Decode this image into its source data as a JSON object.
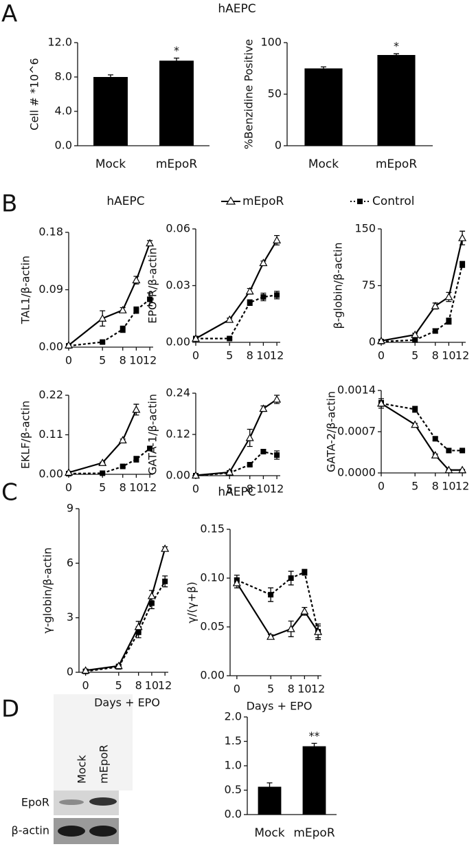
{
  "panels": [
    {
      "label": "A",
      "title": "hAEPC"
    },
    {
      "label": "B",
      "title": "hAEPC"
    },
    {
      "label": "C",
      "title": "hAEPC"
    },
    {
      "label": "D"
    }
  ],
  "blot": {
    "lanes": [
      "Mock",
      "mEpoR"
    ],
    "rows": [
      "EpoR",
      "β-actin"
    ]
  },
  "chart_data": [
    {
      "type": "bar",
      "y_label": "Cell # *10^6",
      "categories": [
        "Mock",
        "mEpoR"
      ],
      "values": [
        8.0,
        9.9
      ],
      "errors": [
        0.25,
        0.3
      ],
      "color": "#000000",
      "annotation": "*",
      "ylim": [
        0,
        12
      ],
      "yticks": [
        {
          "value": 0,
          "label": "0.0"
        },
        {
          "value": 4,
          "label": "4.0"
        },
        {
          "value": 8,
          "label": "8.0"
        },
        {
          "value": 12,
          "label": "12.0"
        }
      ]
    },
    {
      "type": "bar",
      "y_label": "%Benzidine Positive",
      "categories": [
        "Mock",
        "mEpoR"
      ],
      "values": [
        75,
        88
      ],
      "errors": [
        1.5,
        1.2
      ],
      "color": "#000000",
      "annotation": "*",
      "ylim": [
        0,
        100
      ],
      "yticks": [
        0,
        50,
        100
      ]
    },
    {
      "type": "line",
      "y_label": "TAL1/β-actin",
      "x": [
        0,
        5,
        8,
        10,
        12
      ],
      "xlim": [
        0,
        12.5
      ],
      "xticks": [
        0,
        5,
        8,
        10,
        12
      ],
      "ylim": [
        0,
        0.18
      ],
      "yticks": [
        {
          "value": 0,
          "label": "0.00"
        },
        0.09,
        0.18
      ],
      "series": [
        {
          "name": "mEpoR",
          "color": "#000000",
          "marker": "triangle",
          "line_style": "solid",
          "values": [
            0.003,
            0.045,
            0.058,
            0.105,
            0.163
          ],
          "errors": [
            0.002,
            0.012,
            0.004,
            0.006,
            0.004
          ]
        },
        {
          "name": "Control",
          "color": "#000000",
          "marker": "square",
          "line_style": "dashed",
          "values": [
            0.002,
            0.008,
            0.028,
            0.058,
            0.075
          ],
          "errors": [
            0.002,
            0.002,
            0.005,
            0.005,
            0.01
          ]
        }
      ]
    },
    {
      "type": "line",
      "y_label": "EPO-R/β-actin",
      "x": [
        0,
        5,
        8,
        10,
        12
      ],
      "xlim": [
        0,
        12.5
      ],
      "xticks": [
        0,
        5,
        8,
        10,
        12
      ],
      "ylim": [
        0,
        0.06
      ],
      "yticks": [
        {
          "value": 0,
          "label": "0.00"
        },
        0.03,
        0.06
      ],
      "series": [
        {
          "name": "mEpoR",
          "color": "#000000",
          "marker": "triangle",
          "line_style": "solid",
          "values": [
            0.002,
            0.012,
            0.027,
            0.042,
            0.054
          ],
          "errors": [
            0.0005,
            0.0008,
            0.0015,
            0.001,
            0.0025
          ]
        },
        {
          "name": "Control",
          "color": "#000000",
          "marker": "square",
          "line_style": "dashed",
          "values": [
            0.002,
            0.002,
            0.021,
            0.024,
            0.025
          ],
          "errors": [
            0.0005,
            0.0005,
            0.0015,
            0.002,
            0.002
          ]
        }
      ]
    },
    {
      "type": "line",
      "y_label": "β-globin/β-actin",
      "x": [
        0,
        5,
        8,
        10,
        12
      ],
      "xlim": [
        0,
        12.5
      ],
      "xticks": [
        0,
        5,
        8,
        10,
        12
      ],
      "ylim": [
        0,
        150
      ],
      "yticks": [
        0,
        75,
        150
      ],
      "series": [
        {
          "name": "mEpoR",
          "color": "#000000",
          "marker": "triangle",
          "line_style": "solid",
          "values": [
            2,
            10,
            48,
            60,
            138
          ],
          "errors": [
            1,
            2,
            4,
            6,
            9
          ]
        },
        {
          "name": "Control",
          "color": "#000000",
          "marker": "square",
          "line_style": "dashed",
          "values": [
            1,
            3,
            15,
            28,
            103
          ],
          "errors": [
            1,
            1,
            3,
            4,
            4
          ]
        }
      ]
    },
    {
      "type": "line",
      "y_label": "EKLF/β-actin",
      "x": [
        0,
        5,
        8,
        10,
        12
      ],
      "xlim": [
        0,
        12.5
      ],
      "xticks": [
        0,
        5,
        8,
        10,
        12
      ],
      "ylim": [
        0,
        0.22
      ],
      "yticks": [
        {
          "value": 0,
          "label": "0.00"
        },
        0.11,
        0.22
      ],
      "series": [
        {
          "name": "mEpoR",
          "color": "#000000",
          "marker": "triangle",
          "line_style": "solid",
          "values": [
            0.005,
            0.032,
            0.095,
            0.18,
            null
          ],
          "errors": [
            0.002,
            0.002,
            0.003,
            0.015,
            null
          ]
        },
        {
          "name": "Control",
          "color": "#000000",
          "marker": "square",
          "line_style": "dashed",
          "values": [
            0.002,
            0.003,
            0.022,
            0.042,
            0.072
          ],
          "errors": [
            0.001,
            0.001,
            0.003,
            0.008,
            0.005
          ]
        }
      ]
    },
    {
      "type": "line",
      "y_label": "GATA-1/β-actin",
      "x": [
        0,
        5,
        8,
        10,
        12
      ],
      "xlim": [
        0,
        12.5
      ],
      "xticks": [
        0,
        5,
        8,
        10,
        12
      ],
      "ylim": [
        0,
        0.24
      ],
      "yticks": [
        {
          "value": 0,
          "label": "0.00"
        },
        0.12,
        0.24
      ],
      "series": [
        {
          "name": "mEpoR",
          "color": "#000000",
          "marker": "triangle",
          "line_style": "solid",
          "values": [
            0.001,
            0.01,
            0.11,
            0.195,
            0.222
          ],
          "errors": [
            0.001,
            0.005,
            0.025,
            0.008,
            0.012
          ]
        },
        {
          "name": "Control",
          "color": "#000000",
          "marker": "square",
          "line_style": "dashed",
          "values": [
            0.0,
            0.008,
            0.032,
            0.07,
            0.06
          ],
          "errors": [
            0.001,
            0.003,
            0.004,
            0.006,
            0.012
          ]
        }
      ]
    },
    {
      "type": "line",
      "y_label": "GATA-2/β-actin",
      "x": [
        0,
        5,
        8,
        10,
        12
      ],
      "xlim": [
        0,
        12.5
      ],
      "xticks": [
        0,
        5,
        8,
        10,
        12
      ],
      "ylim": [
        0,
        0.0014
      ],
      "yticks": [
        {
          "value": 0,
          "label": "0.0000"
        },
        0.0007,
        0.0014
      ],
      "series": [
        {
          "name": "mEpoR",
          "color": "#000000",
          "marker": "triangle",
          "line_style": "solid",
          "values": [
            0.00118,
            0.00082,
            0.0003,
            5e-05,
            5e-05
          ],
          "errors": [
            5e-05,
            2e-05,
            2e-05,
            1e-05,
            1e-05
          ]
        },
        {
          "name": "Control",
          "color": "#000000",
          "marker": "square",
          "line_style": "dashed",
          "values": [
            0.00118,
            0.00108,
            0.00058,
            0.00038,
            0.00038
          ],
          "errors": [
            8e-05,
            5e-05,
            3e-05,
            2e-05,
            1e-05
          ]
        }
      ]
    },
    {
      "type": "line",
      "y_label": "γ-globin/β-actin",
      "x_label": "Days + EPO",
      "x": [
        0,
        5,
        8,
        10,
        12
      ],
      "xlim": [
        -1,
        12.5
      ],
      "xticks": [
        0,
        5,
        8,
        10,
        12
      ],
      "ylim": [
        0,
        9
      ],
      "yticks": [
        0,
        3,
        6,
        9
      ],
      "series": [
        {
          "name": "mEpoR",
          "color": "#000000",
          "marker": "triangle",
          "line_style": "solid",
          "values": [
            0.1,
            0.35,
            2.5,
            4.2,
            6.8
          ],
          "errors": [
            0.05,
            0.1,
            0.3,
            0.3,
            0.1
          ]
        },
        {
          "name": "Control",
          "color": "#000000",
          "marker": "square",
          "line_style": "dashed",
          "values": [
            0.05,
            0.3,
            2.2,
            3.8,
            5.0
          ],
          "errors": [
            0.05,
            0.1,
            0.3,
            0.3,
            0.3
          ]
        }
      ]
    },
    {
      "type": "line",
      "y_label": "γ/(γ+β)",
      "x_label": "Days + EPO",
      "x": [
        0,
        5,
        8,
        10,
        12
      ],
      "xlim": [
        -1,
        12.5
      ],
      "xticks": [
        0,
        5,
        8,
        10,
        12
      ],
      "ylim": [
        0,
        0.15
      ],
      "yticks": [
        {
          "value": 0,
          "label": "0.00"
        },
        0.05,
        {
          "value": 0.1,
          "label": "0.10"
        },
        0.15
      ],
      "series": [
        {
          "name": "mEpoR",
          "color": "#000000",
          "marker": "triangle",
          "line_style": "solid",
          "values": [
            0.095,
            0.04,
            0.048,
            0.066,
            0.045
          ],
          "errors": [
            0.005,
            0.002,
            0.008,
            0.004,
            0.006
          ]
        },
        {
          "name": "Control",
          "color": "#000000",
          "marker": "square",
          "line_style": "dashed",
          "values": [
            0.098,
            0.083,
            0.1,
            0.106,
            0.045
          ],
          "errors": [
            0.005,
            0.007,
            0.007,
            0.003,
            0.008
          ]
        }
      ]
    },
    {
      "type": "bar",
      "categories": [
        "Mock",
        "mEpoR"
      ],
      "values": [
        0.57,
        1.4
      ],
      "errors": [
        0.08,
        0.06
      ],
      "color": "#000000",
      "annotation": "**",
      "ylim": [
        0,
        2.0
      ],
      "yticks": [
        {
          "value": 0,
          "label": "0.0"
        },
        0.5,
        {
          "value": 1,
          "label": "1.0"
        },
        1.5,
        {
          "value": 2,
          "label": "2.0"
        }
      ]
    }
  ]
}
